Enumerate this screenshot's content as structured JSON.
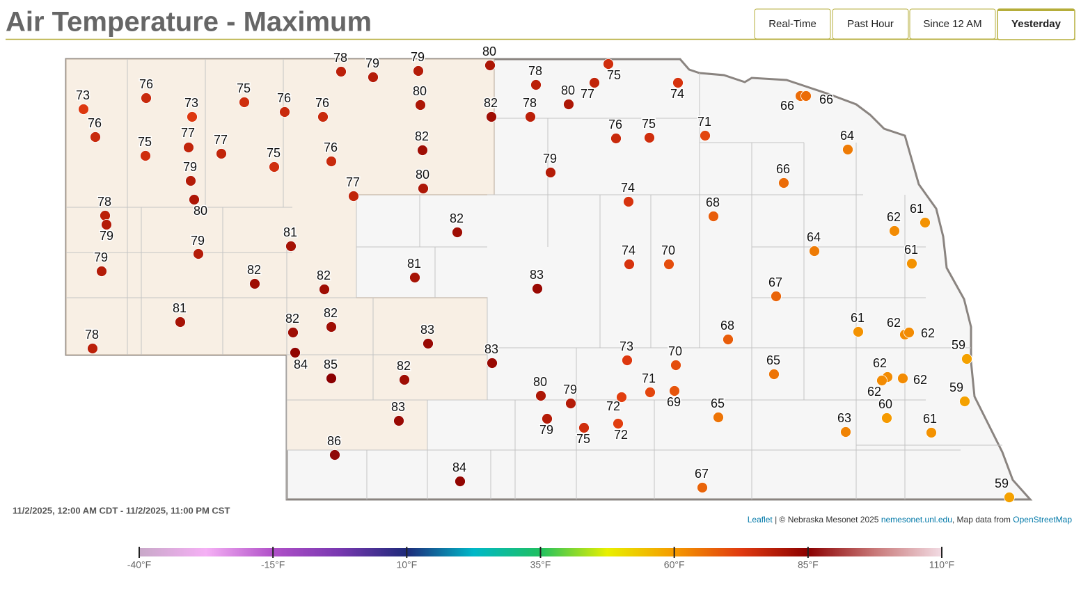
{
  "header": {
    "title": "Air Temperature - Maximum",
    "tabs": [
      {
        "label": "Real-Time"
      },
      {
        "label": "Past Hour"
      },
      {
        "label": "Since 12 AM"
      },
      {
        "label": "Yesterday",
        "selected": true
      }
    ]
  },
  "map": {
    "stations": [
      73,
      76,
      76,
      73,
      75,
      77,
      77,
      75,
      76,
      75,
      79,
      80,
      78,
      79,
      79,
      79,
      81,
      82,
      82,
      81,
      78,
      82,
      82,
      84,
      85,
      83,
      82,
      83,
      86,
      84,
      78,
      79,
      79,
      80,
      76,
      82,
      76,
      80,
      77,
      82,
      81,
      80,
      82,
      78,
      78,
      80,
      77,
      75,
      74,
      79,
      76,
      75,
      71,
      74,
      83,
      74,
      70,
      68,
      83,
      73,
      70,
      80,
      79,
      79,
      75,
      71,
      72,
      69,
      72,
      65,
      67,
      68,
      67,
      66,
      66,
      66,
      64,
      64,
      62,
      61,
      61,
      65,
      61,
      62,
      62,
      59,
      62,
      62,
      62,
      59,
      60,
      63,
      61,
      59
    ],
    "date_range": "11/2/2025, 12:00 AM CDT - 11/2/2025, 11:00 PM CST",
    "attribution": {
      "leaflet": "Leaflet",
      "text": "| © Nebraska Mesonet 2025",
      "site": "nemesonet.unl.edu",
      "text2": ", Map data from",
      "osm": "OpenStreetMap"
    }
  },
  "colorbar": {
    "ticks": [
      {
        "value": -40,
        "label": "-40°F"
      },
      {
        "value": -15,
        "label": "-15°F"
      },
      {
        "value": 10,
        "label": "10°F"
      },
      {
        "value": 35,
        "label": "35°F"
      },
      {
        "value": 60,
        "label": "60°F"
      },
      {
        "value": 85,
        "label": "85°F"
      },
      {
        "value": 110,
        "label": "110°F"
      }
    ],
    "colors": [
      "#c8a8c8",
      "#f5b0f5",
      "#b050c8",
      "#7838b0",
      "#1e2a7a",
      "#00b8c8",
      "#20c060",
      "#e8f000",
      "#f59a00",
      "#e03a10",
      "#8b0000",
      "#c87878",
      "#f2dce4"
    ]
  }
}
